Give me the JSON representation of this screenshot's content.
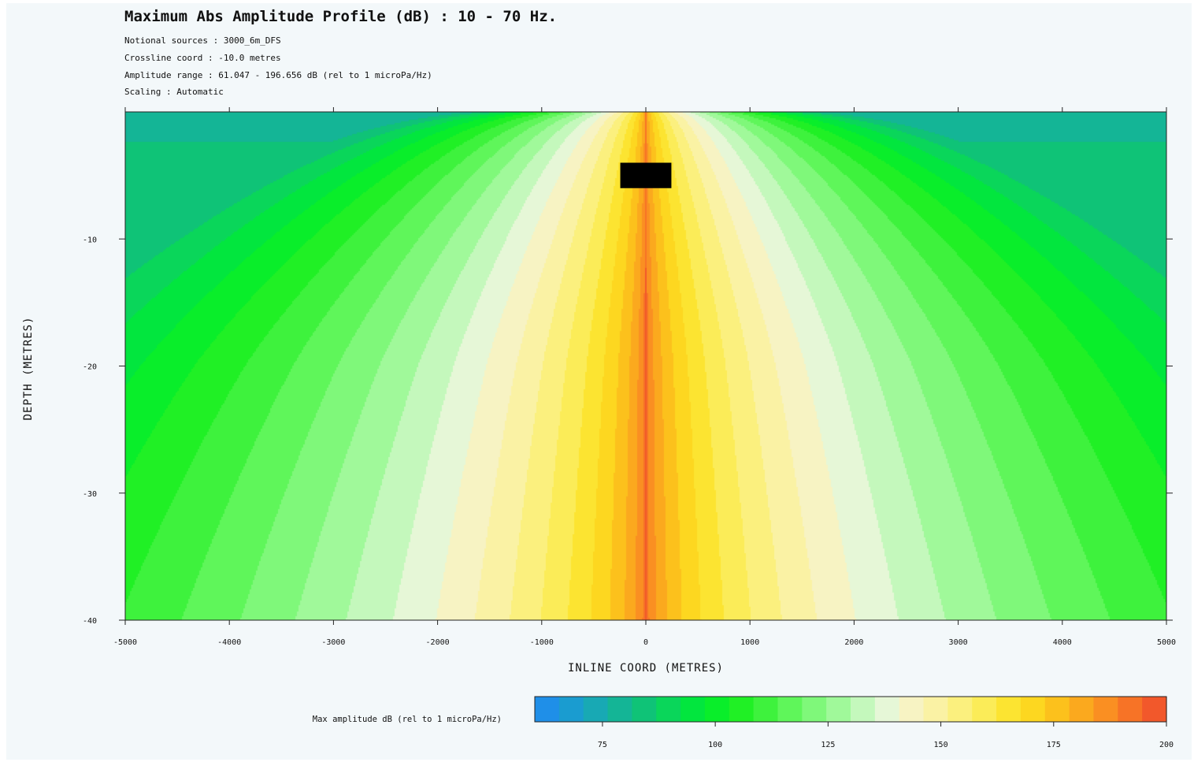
{
  "header": {
    "title": "Maximum Abs Amplitude Profile (dB) : 10 - 70 Hz.",
    "notional_sources": "Notional sources : 3000_6m_DFS",
    "crossline": "Crossline coord : -10.0 metres",
    "amplitude_range": "Amplitude range : 61.047 - 196.656 dB (rel to 1 microPa/Hz)",
    "scaling": "Scaling : Automatic"
  },
  "chart_data": {
    "type": "heatmap",
    "title": "Maximum Abs Amplitude Profile (dB) : 10 - 70 Hz.",
    "xlabel": "INLINE COORD (METRES)",
    "ylabel": "DEPTH (METRES)",
    "xlim": [
      -5000,
      5000
    ],
    "ylim": [
      -40,
      0
    ],
    "x_ticks": [
      -5000,
      -4000,
      -3000,
      -2000,
      -1000,
      0,
      1000,
      2000,
      3000,
      4000,
      5000
    ],
    "y_ticks": [
      -10,
      -20,
      -30,
      -40
    ],
    "x_tick_labels": [
      "-5000",
      "-4000",
      "-3000",
      "-2000",
      "-1000",
      "0",
      "1000",
      "2000",
      "3000",
      "4000",
      "5000"
    ],
    "y_tick_labels": [
      "-10",
      "-20",
      "-30",
      "-40"
    ],
    "amplitude_min_db": 61.047,
    "amplitude_max_db": 196.656,
    "source_marker": {
      "x_range": [
        -200,
        200
      ],
      "depth_range": [
        -6,
        -4
      ],
      "color": "#000000"
    },
    "colorbar": {
      "label": "Max amplitude dB (rel to 1 microPa/Hz)",
      "range": [
        60,
        200
      ],
      "ticks": [
        75,
        100,
        125,
        150,
        175,
        200
      ],
      "tick_labels": [
        "75",
        "100",
        "125",
        "150",
        "175",
        "200"
      ],
      "colors": [
        "#1f8fe8",
        "#1a9cd0",
        "#18a9b4",
        "#14b596",
        "#0fc377",
        "#0ad65a",
        "#02e63e",
        "#09ee2a",
        "#20f025",
        "#3ef23d",
        "#5ff65a",
        "#7ff87a",
        "#a0f99a",
        "#c4f8bc",
        "#e6f7d7",
        "#f7f3c3",
        "#faf2a4",
        "#fbf07e",
        "#fbec58",
        "#fce431",
        "#fdd720",
        "#fcc11c",
        "#fba91e",
        "#fa8f22",
        "#f77326",
        "#f2582b"
      ]
    }
  }
}
